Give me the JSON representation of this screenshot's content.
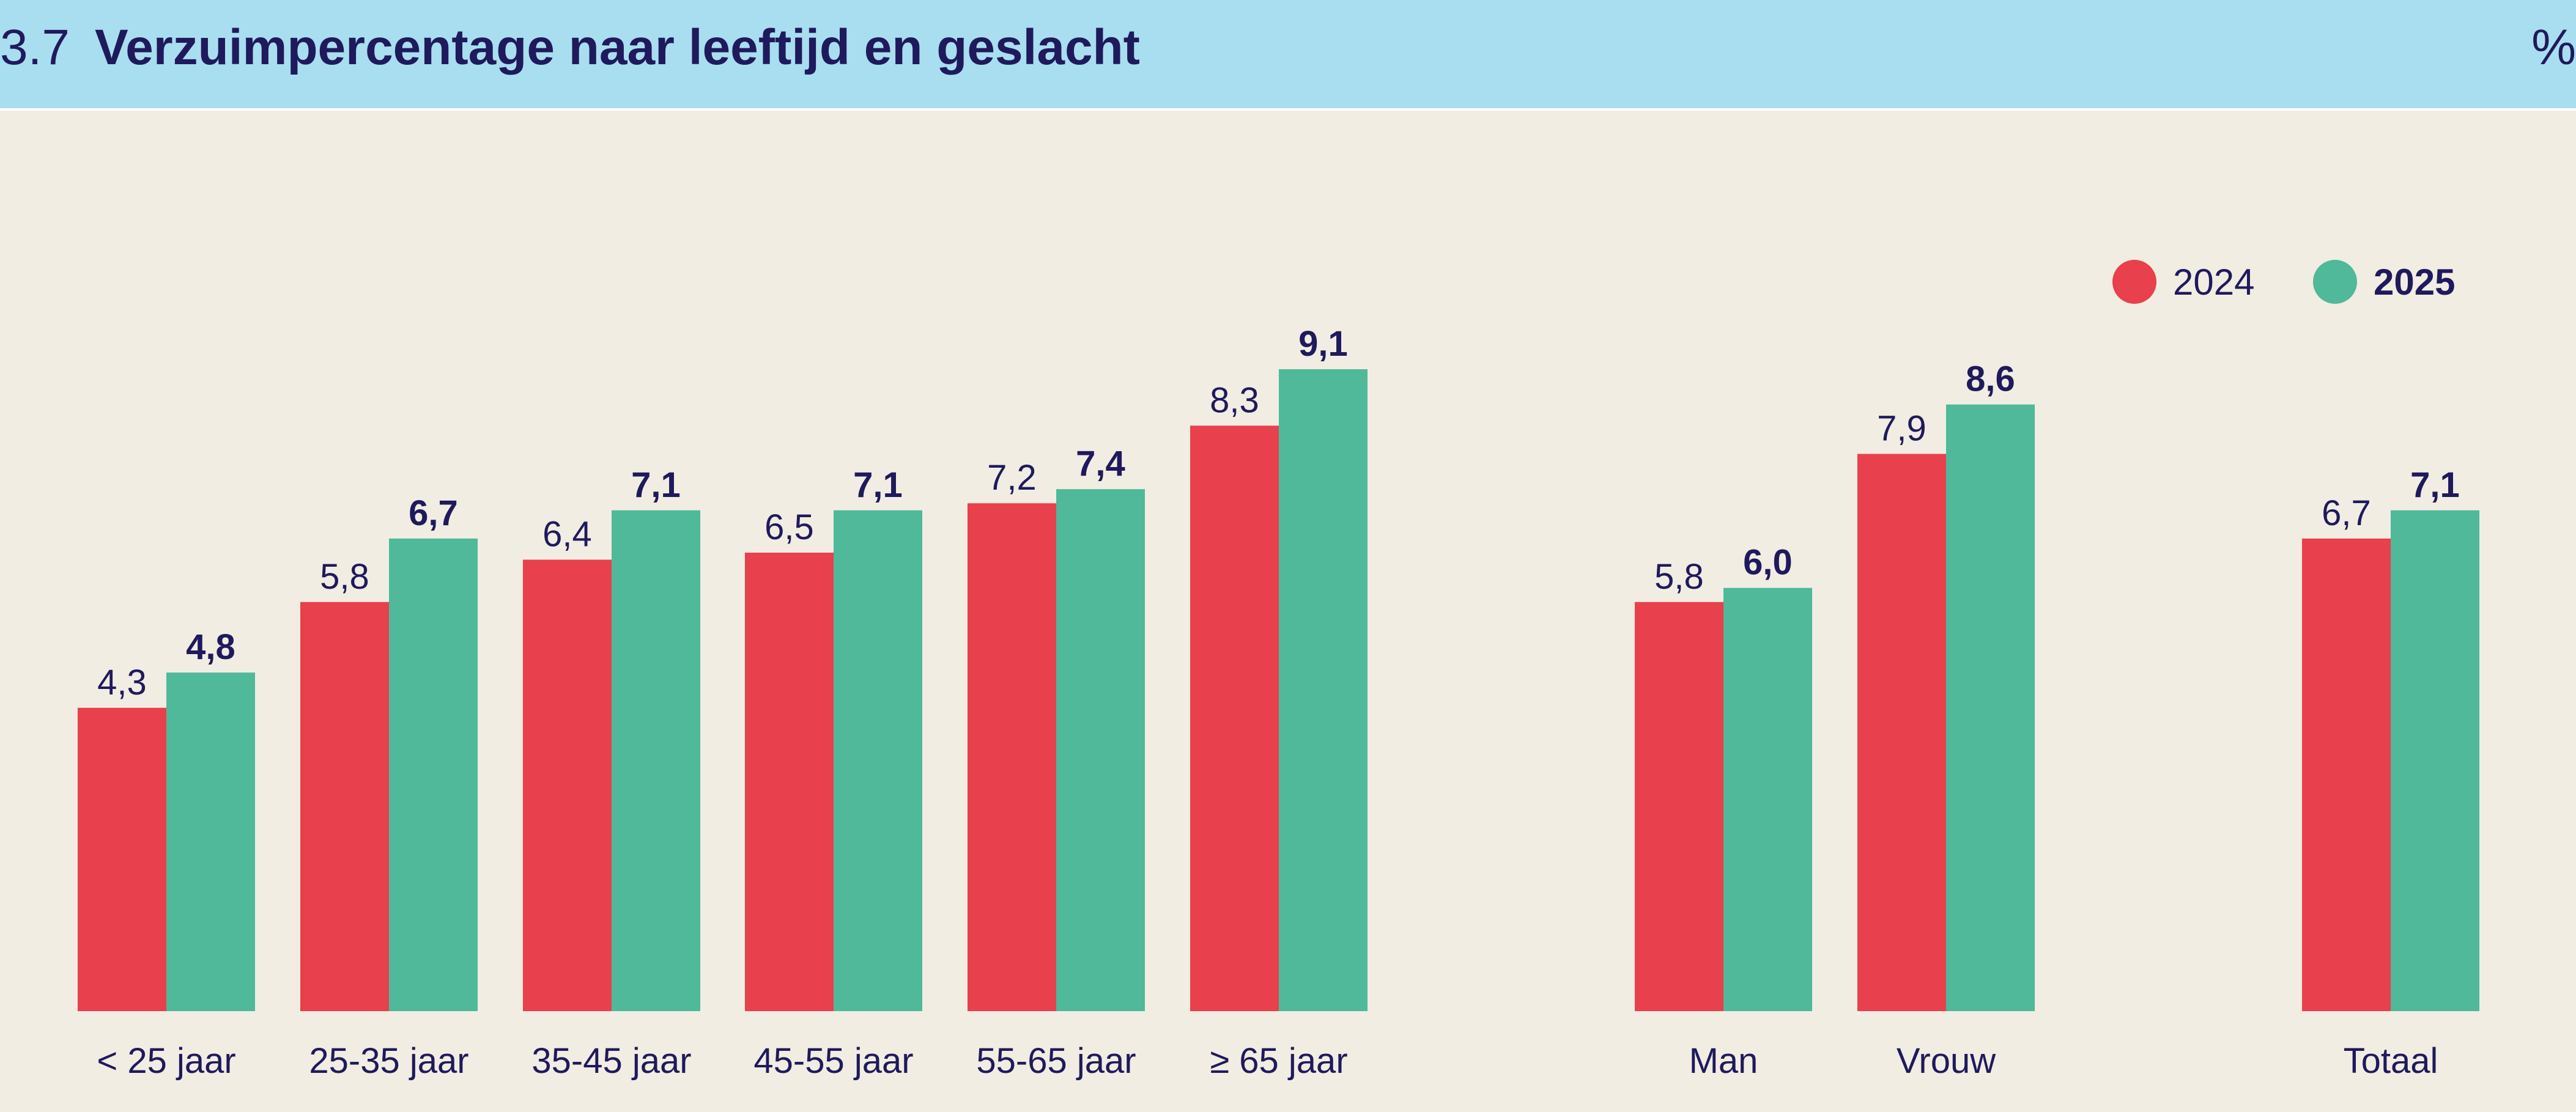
{
  "header": {
    "number": "3.7",
    "title": "Verzuimpercentage naar leeftijd en geslacht",
    "unit": "%"
  },
  "colors": {
    "header_bg": "#a9def0",
    "background": "#f1ede2",
    "text": "#1f1a5c",
    "series_2024": "#e8404c",
    "series_2025": "#4fb99a"
  },
  "chart_data": {
    "type": "bar",
    "title": "Verzuimpercentage naar leeftijd en geslacht",
    "xlabel": "",
    "ylabel": "",
    "ylim": [
      0,
      9.1
    ],
    "grid": false,
    "legend_position": "top-right",
    "categories": [
      "< 25 jaar",
      "25-35 jaar",
      "35-45 jaar",
      "45-55 jaar",
      "55-65 jaar",
      "≥ 65 jaar",
      "Man",
      "Vrouw",
      "Totaal"
    ],
    "series": [
      {
        "name": "2024",
        "color": "#e8404c",
        "values": [
          4.3,
          5.8,
          6.4,
          6.5,
          7.2,
          8.3,
          5.8,
          7.9,
          6.7
        ],
        "value_labels": [
          "4,3",
          "5,8",
          "6,4",
          "6,5",
          "7,2",
          "8,3",
          "5,8",
          "7,9",
          "6,7"
        ]
      },
      {
        "name": "2025",
        "color": "#4fb99a",
        "values": [
          4.8,
          6.7,
          7.1,
          7.1,
          7.4,
          9.1,
          6.0,
          8.6,
          7.1
        ],
        "value_labels": [
          "4,8",
          "6,7",
          "7,1",
          "7,1",
          "7,4",
          "9,1",
          "6,0",
          "8,6",
          "7,1"
        ]
      }
    ]
  }
}
